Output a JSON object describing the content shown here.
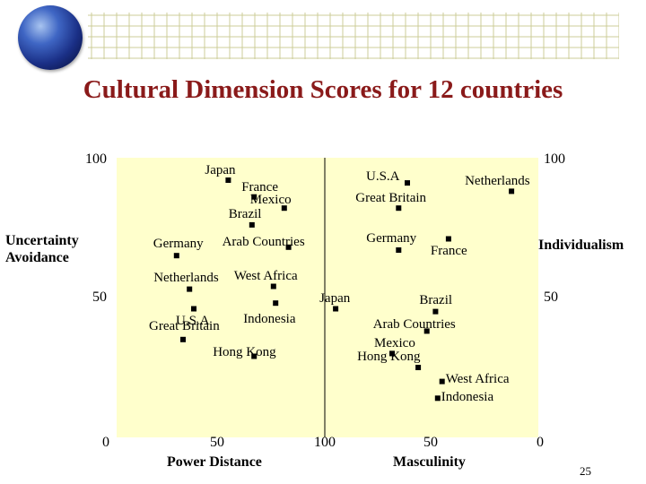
{
  "title": "Cultural Dimension Scores for 12 countries",
  "page_number": "25",
  "colors": {
    "title": "#8a1a1a",
    "plot_background": "#ffffcc",
    "header_grid": "#cccc99",
    "point": "#000000"
  },
  "icons": {
    "header_image": "globe-icon"
  },
  "chart_data": [
    {
      "type": "scatter",
      "title": "",
      "xlabel": "Power Distance",
      "ylabel": "Uncertainty Avoidance",
      "xlim": [
        0,
        100
      ],
      "ylim": [
        0,
        100
      ],
      "x_tick_labels": [
        "0",
        "50",
        "100"
      ],
      "y_tick_labels": [
        "100",
        "50",
        "0"
      ],
      "grid": false,
      "points": [
        {
          "label": "Japan",
          "x": 56,
          "y": 92
        },
        {
          "label": "France",
          "x": 68,
          "y": 86
        },
        {
          "label": "Mexico",
          "x": 82,
          "y": 82
        },
        {
          "label": "Brazil",
          "x": 67,
          "y": 76
        },
        {
          "label": "Arab Countries",
          "x": 84,
          "y": 68
        },
        {
          "label": "Germany",
          "x": 32,
          "y": 65
        },
        {
          "label": "West Africa",
          "x": 77,
          "y": 54
        },
        {
          "label": "Netherlands",
          "x": 38,
          "y": 53
        },
        {
          "label": "Indonesia",
          "x": 78,
          "y": 48
        },
        {
          "label": "U.S.A",
          "x": 40,
          "y": 46
        },
        {
          "label": "Great Britain",
          "x": 35,
          "y": 35
        },
        {
          "label": "Hong Kong",
          "x": 68,
          "y": 29
        }
      ]
    },
    {
      "type": "scatter",
      "title": "",
      "xlabel": "Masculinity",
      "ylabel": "Individualism",
      "xlim": [
        0,
        100
      ],
      "ylim": [
        0,
        100
      ],
      "x_tick_labels": [
        "50",
        "0"
      ],
      "y_tick_labels": [
        "100",
        "50"
      ],
      "grid": false,
      "points": [
        {
          "label": "U.S.A",
          "x": 62,
          "y": 91
        },
        {
          "label": "Netherlands",
          "x": 14,
          "y": 88
        },
        {
          "label": "Great Britain",
          "x": 66,
          "y": 82
        },
        {
          "label": "Germany",
          "x": 66,
          "y": 67
        },
        {
          "label": "France",
          "x": 43,
          "y": 71
        },
        {
          "label": "Japan",
          "x": 95,
          "y": 46
        },
        {
          "label": "Brazil",
          "x": 49,
          "y": 45
        },
        {
          "label": "Arab Countries",
          "x": 53,
          "y": 38
        },
        {
          "label": "Mexico",
          "x": 69,
          "y": 30
        },
        {
          "label": "Hong Kong",
          "x": 57,
          "y": 25
        },
        {
          "label": "West Africa",
          "x": 46,
          "y": 20
        },
        {
          "label": "Indonesia",
          "x": 48,
          "y": 14
        }
      ]
    }
  ]
}
